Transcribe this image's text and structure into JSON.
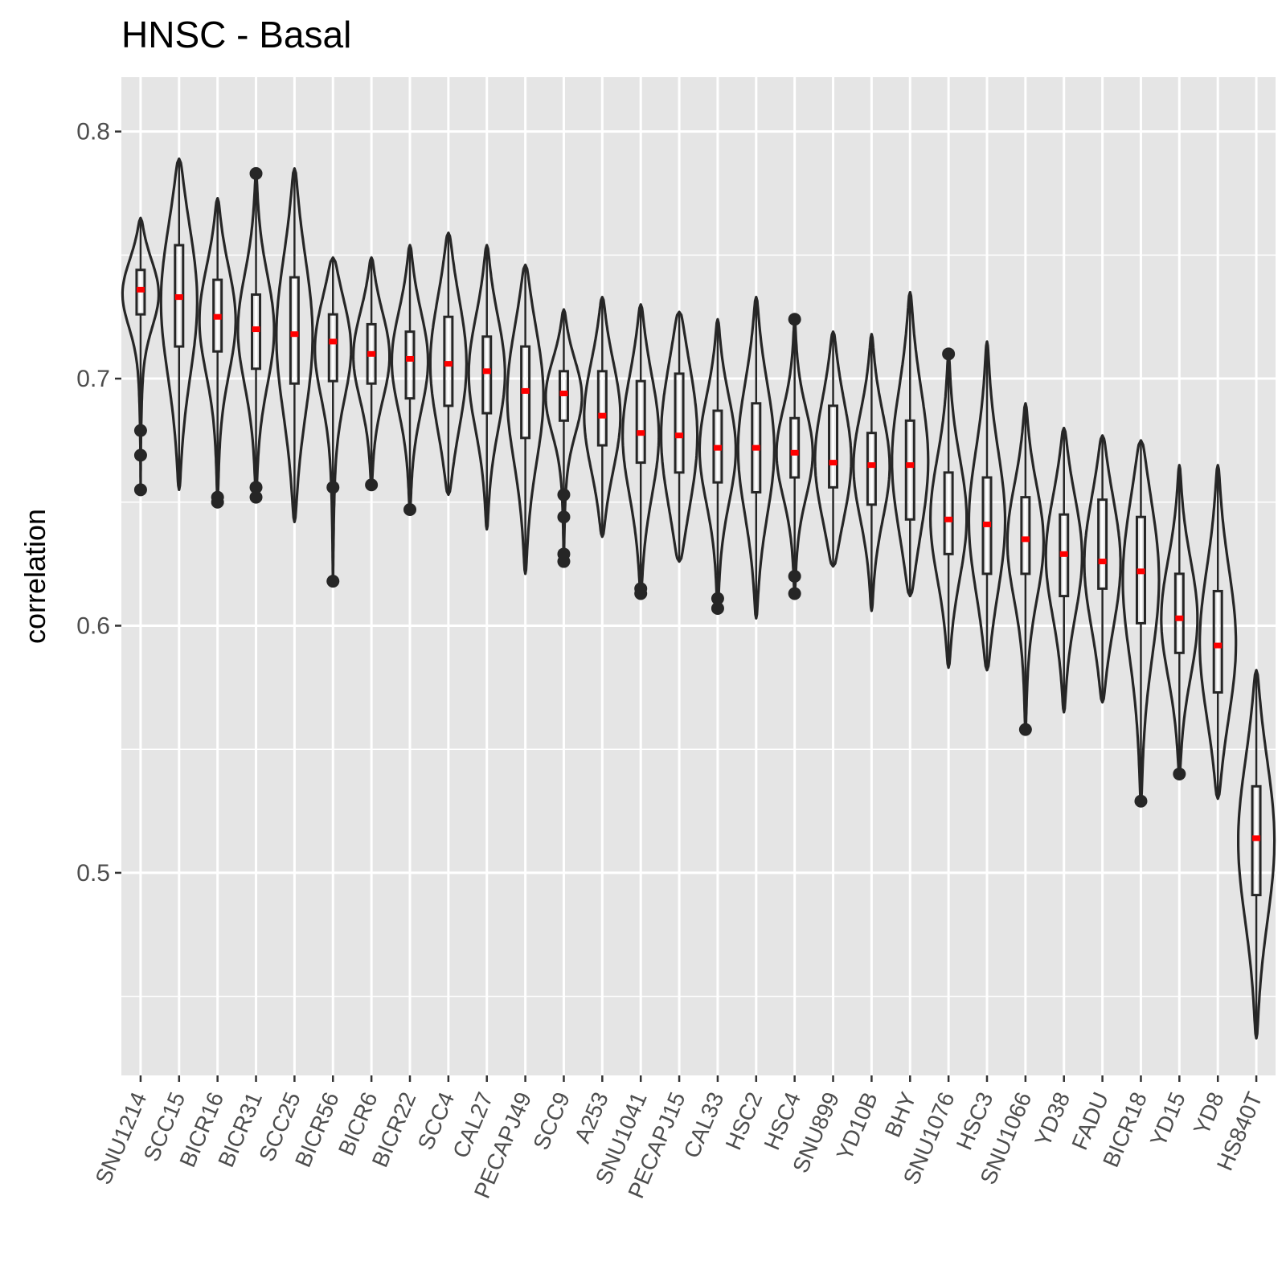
{
  "chart_data": {
    "type": "violin",
    "title": "HNSC - Basal",
    "xlabel": "",
    "ylabel": "correlation",
    "ylim": [
      0.418,
      0.822
    ],
    "yticks": [
      "0.5",
      "0.6",
      "0.7",
      "0.8"
    ],
    "grid": true,
    "legend": "none",
    "colors": {
      "panel": "#e5e5e5",
      "grid": "#ffffff",
      "violin": "#262626",
      "median_point": "#ff0000"
    },
    "categories": [
      "SNU1214",
      "SCC15",
      "BICR16",
      "BICR31",
      "SCC25",
      "BICR56",
      "BICR6",
      "BICR22",
      "SCC4",
      "CAL27",
      "PECAPJ49",
      "SCC9",
      "A253",
      "SNU1041",
      "PECAPJ15",
      "CAL33",
      "HSC2",
      "HSC4",
      "SNU899",
      "YD10B",
      "BHY",
      "SNU1076",
      "HSC3",
      "SNU1066",
      "YD38",
      "FADU",
      "BICR18",
      "YD15",
      "YD8",
      "HS840T"
    ],
    "series": [
      {
        "min": 0.655,
        "max": 0.765,
        "q1": 0.726,
        "median": 0.736,
        "q3": 0.744,
        "mean": 0.736,
        "outliers": [
          0.679,
          0.669,
          0.655
        ]
      },
      {
        "min": 0.655,
        "max": 0.789,
        "q1": 0.713,
        "median": 0.733,
        "q3": 0.754,
        "mean": 0.733,
        "outliers": []
      },
      {
        "min": 0.651,
        "max": 0.773,
        "q1": 0.711,
        "median": 0.725,
        "q3": 0.74,
        "mean": 0.725,
        "outliers": [
          0.652,
          0.65
        ]
      },
      {
        "min": 0.652,
        "max": 0.783,
        "q1": 0.704,
        "median": 0.72,
        "q3": 0.734,
        "mean": 0.72,
        "outliers": [
          0.783,
          0.656,
          0.652
        ]
      },
      {
        "min": 0.642,
        "max": 0.785,
        "q1": 0.698,
        "median": 0.718,
        "q3": 0.741,
        "mean": 0.718,
        "outliers": []
      },
      {
        "min": 0.618,
        "max": 0.749,
        "q1": 0.699,
        "median": 0.715,
        "q3": 0.726,
        "mean": 0.715,
        "outliers": [
          0.656,
          0.618
        ]
      },
      {
        "min": 0.657,
        "max": 0.749,
        "q1": 0.698,
        "median": 0.71,
        "q3": 0.722,
        "mean": 0.71,
        "outliers": [
          0.657
        ]
      },
      {
        "min": 0.647,
        "max": 0.754,
        "q1": 0.692,
        "median": 0.708,
        "q3": 0.719,
        "mean": 0.708,
        "outliers": [
          0.647
        ]
      },
      {
        "min": 0.653,
        "max": 0.759,
        "q1": 0.689,
        "median": 0.706,
        "q3": 0.725,
        "mean": 0.706,
        "outliers": []
      },
      {
        "min": 0.639,
        "max": 0.754,
        "q1": 0.686,
        "median": 0.703,
        "q3": 0.717,
        "mean": 0.703,
        "outliers": []
      },
      {
        "min": 0.621,
        "max": 0.746,
        "q1": 0.676,
        "median": 0.695,
        "q3": 0.713,
        "mean": 0.695,
        "outliers": []
      },
      {
        "min": 0.626,
        "max": 0.728,
        "q1": 0.683,
        "median": 0.694,
        "q3": 0.703,
        "mean": 0.694,
        "outliers": [
          0.653,
          0.644,
          0.629,
          0.626
        ]
      },
      {
        "min": 0.636,
        "max": 0.733,
        "q1": 0.673,
        "median": 0.685,
        "q3": 0.703,
        "mean": 0.685,
        "outliers": []
      },
      {
        "min": 0.613,
        "max": 0.73,
        "q1": 0.666,
        "median": 0.678,
        "q3": 0.699,
        "mean": 0.678,
        "outliers": [
          0.615,
          0.613
        ]
      },
      {
        "min": 0.626,
        "max": 0.727,
        "q1": 0.662,
        "median": 0.677,
        "q3": 0.702,
        "mean": 0.677,
        "outliers": []
      },
      {
        "min": 0.607,
        "max": 0.724,
        "q1": 0.658,
        "median": 0.672,
        "q3": 0.687,
        "mean": 0.672,
        "outliers": [
          0.611,
          0.607
        ]
      },
      {
        "min": 0.603,
        "max": 0.733,
        "q1": 0.654,
        "median": 0.672,
        "q3": 0.69,
        "mean": 0.672,
        "outliers": []
      },
      {
        "min": 0.613,
        "max": 0.724,
        "q1": 0.66,
        "median": 0.67,
        "q3": 0.684,
        "mean": 0.67,
        "outliers": [
          0.724,
          0.62,
          0.613
        ]
      },
      {
        "min": 0.624,
        "max": 0.719,
        "q1": 0.656,
        "median": 0.666,
        "q3": 0.689,
        "mean": 0.666,
        "outliers": []
      },
      {
        "min": 0.606,
        "max": 0.718,
        "q1": 0.649,
        "median": 0.665,
        "q3": 0.678,
        "mean": 0.665,
        "outliers": []
      },
      {
        "min": 0.612,
        "max": 0.735,
        "q1": 0.643,
        "median": 0.665,
        "q3": 0.683,
        "mean": 0.665,
        "outliers": []
      },
      {
        "min": 0.583,
        "max": 0.71,
        "q1": 0.629,
        "median": 0.643,
        "q3": 0.662,
        "mean": 0.643,
        "outliers": [
          0.71
        ]
      },
      {
        "min": 0.582,
        "max": 0.715,
        "q1": 0.621,
        "median": 0.641,
        "q3": 0.66,
        "mean": 0.641,
        "outliers": []
      },
      {
        "min": 0.558,
        "max": 0.69,
        "q1": 0.621,
        "median": 0.635,
        "q3": 0.652,
        "mean": 0.635,
        "outliers": [
          0.558
        ]
      },
      {
        "min": 0.565,
        "max": 0.68,
        "q1": 0.612,
        "median": 0.629,
        "q3": 0.645,
        "mean": 0.629,
        "outliers": []
      },
      {
        "min": 0.569,
        "max": 0.677,
        "q1": 0.615,
        "median": 0.626,
        "q3": 0.651,
        "mean": 0.626,
        "outliers": []
      },
      {
        "min": 0.529,
        "max": 0.675,
        "q1": 0.601,
        "median": 0.622,
        "q3": 0.644,
        "mean": 0.622,
        "outliers": [
          0.529
        ]
      },
      {
        "min": 0.54,
        "max": 0.665,
        "q1": 0.589,
        "median": 0.603,
        "q3": 0.621,
        "mean": 0.603,
        "outliers": [
          0.54
        ]
      },
      {
        "min": 0.53,
        "max": 0.665,
        "q1": 0.573,
        "median": 0.592,
        "q3": 0.614,
        "mean": 0.592,
        "outliers": []
      },
      {
        "min": 0.433,
        "max": 0.582,
        "q1": 0.491,
        "median": 0.514,
        "q3": 0.535,
        "mean": 0.514,
        "outliers": []
      }
    ]
  }
}
